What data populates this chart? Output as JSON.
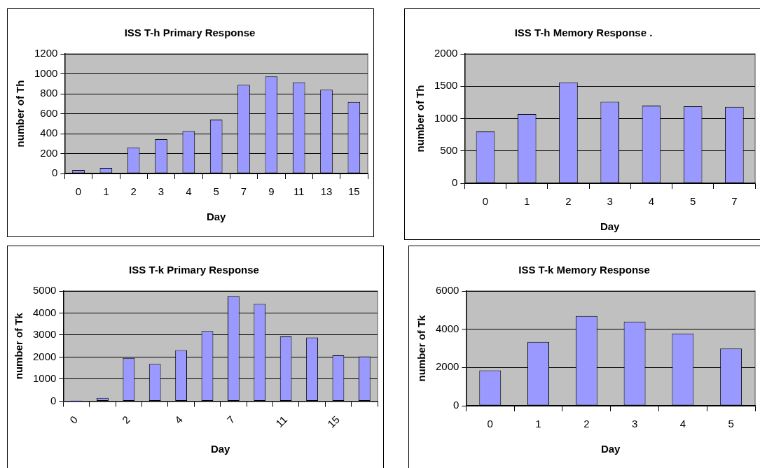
{
  "chart_data": [
    {
      "type": "bar",
      "title": "ISS T-h Primary Response",
      "xlabel": "Day",
      "ylabel": "number of Th",
      "categories": [
        "0",
        "1",
        "2",
        "3",
        "4",
        "5",
        "7",
        "9",
        "11",
        "13",
        "15"
      ],
      "values": [
        35,
        57,
        261,
        343,
        427,
        541,
        890,
        974,
        914,
        841,
        718
      ],
      "color": "#9999ff",
      "ylim": [
        0,
        1200
      ],
      "yticks": [
        0,
        200,
        400,
        600,
        800,
        1000,
        1200
      ],
      "grid": "y"
    },
    {
      "type": "bar",
      "title": "ISS T-h Memory Response .",
      "xlabel": "Day",
      "ylabel": "number of Th",
      "categories": [
        "0",
        "1",
        "2",
        "3",
        "4",
        "5",
        "7"
      ],
      "values": [
        800,
        1070,
        1560,
        1260,
        1200,
        1190,
        1180
      ],
      "color": "#9999ff",
      "ylim": [
        0,
        2000
      ],
      "yticks": [
        0,
        500,
        1000,
        1500,
        2000
      ],
      "grid": "y"
    },
    {
      "type": "bar",
      "title": "ISS T-k Primary Response",
      "xlabel": "Day",
      "ylabel": "number of Tk",
      "categories": [
        "0",
        null,
        "2",
        null,
        "4",
        null,
        "7",
        null,
        "11",
        null,
        "15",
        null
      ],
      "values": [
        40,
        150,
        1960,
        1690,
        2320,
        3180,
        4770,
        4410,
        2940,
        2890,
        2080,
        2030
      ],
      "color": "#9999ff",
      "ylim": [
        0,
        5000
      ],
      "yticks": [
        0,
        1000,
        2000,
        3000,
        4000,
        5000
      ],
      "grid": "y"
    },
    {
      "type": "bar",
      "title": "ISS T-k Memory Response",
      "xlabel": "Day",
      "ylabel": "number of Tk",
      "categories": [
        "0",
        "1",
        "2",
        "3",
        "4",
        "5"
      ],
      "values": [
        1850,
        3340,
        4690,
        4400,
        3780,
        2990
      ],
      "color": "#9999ff",
      "ylim": [
        0,
        6000
      ],
      "yticks": [
        0,
        2000,
        4000,
        6000
      ],
      "grid": "y"
    }
  ]
}
